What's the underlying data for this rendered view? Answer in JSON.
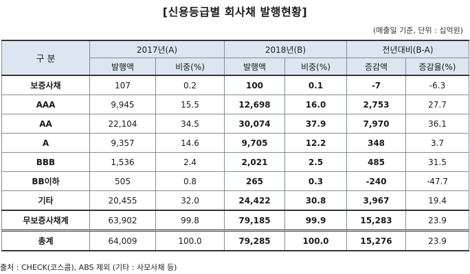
{
  "title": "[신용등급별 회사채 발행현황]",
  "unit_note": "(매출일 기준, 단위 : 십억원)",
  "header": {
    "corner": "구 분",
    "group_2017": "2017년(A)",
    "group_2018": "2018년(B)",
    "group_diff": "전년대비(B-A)",
    "sub": [
      "발행액",
      "비중(%)",
      "발행액",
      "비중(%)",
      "증감액",
      "증감율(%)"
    ]
  },
  "rows": [
    {
      "label": "보증사채",
      "c": [
        "107",
        "0.2",
        "100",
        "0.1",
        "-7",
        "-6.3"
      ]
    },
    {
      "label": "AAA",
      "c": [
        "9,945",
        "15.5",
        "12,698",
        "16.0",
        "2,753",
        "27.7"
      ]
    },
    {
      "label": "AA",
      "c": [
        "22,104",
        "34.5",
        "30,074",
        "37.9",
        "7,970",
        "36.1"
      ]
    },
    {
      "label": "A",
      "c": [
        "9,357",
        "14.6",
        "9,705",
        "12.2",
        "348",
        "3.7"
      ]
    },
    {
      "label": "BBB",
      "c": [
        "1,536",
        "2.4",
        "2,021",
        "2.5",
        "485",
        "31.5"
      ]
    },
    {
      "label": "BB이하",
      "c": [
        "505",
        "0.8",
        "265",
        "0.3",
        "-240",
        "-47.7"
      ]
    },
    {
      "label": "기타",
      "c": [
        "20,455",
        "32.0",
        "24,422",
        "30.8",
        "3,967",
        "19.4"
      ]
    },
    {
      "label": "무보증사채계",
      "c": [
        "63,902",
        "99.8",
        "79,185",
        "99.9",
        "15,283",
        "23.9"
      ]
    },
    {
      "label": "총계",
      "c": [
        "64,009",
        "100.0",
        "79,285",
        "100.0",
        "15,276",
        "23.9"
      ]
    }
  ],
  "source": "출처 : CHECK(코스콤), ABS 제외 (기타 : 사모사채 등)"
}
